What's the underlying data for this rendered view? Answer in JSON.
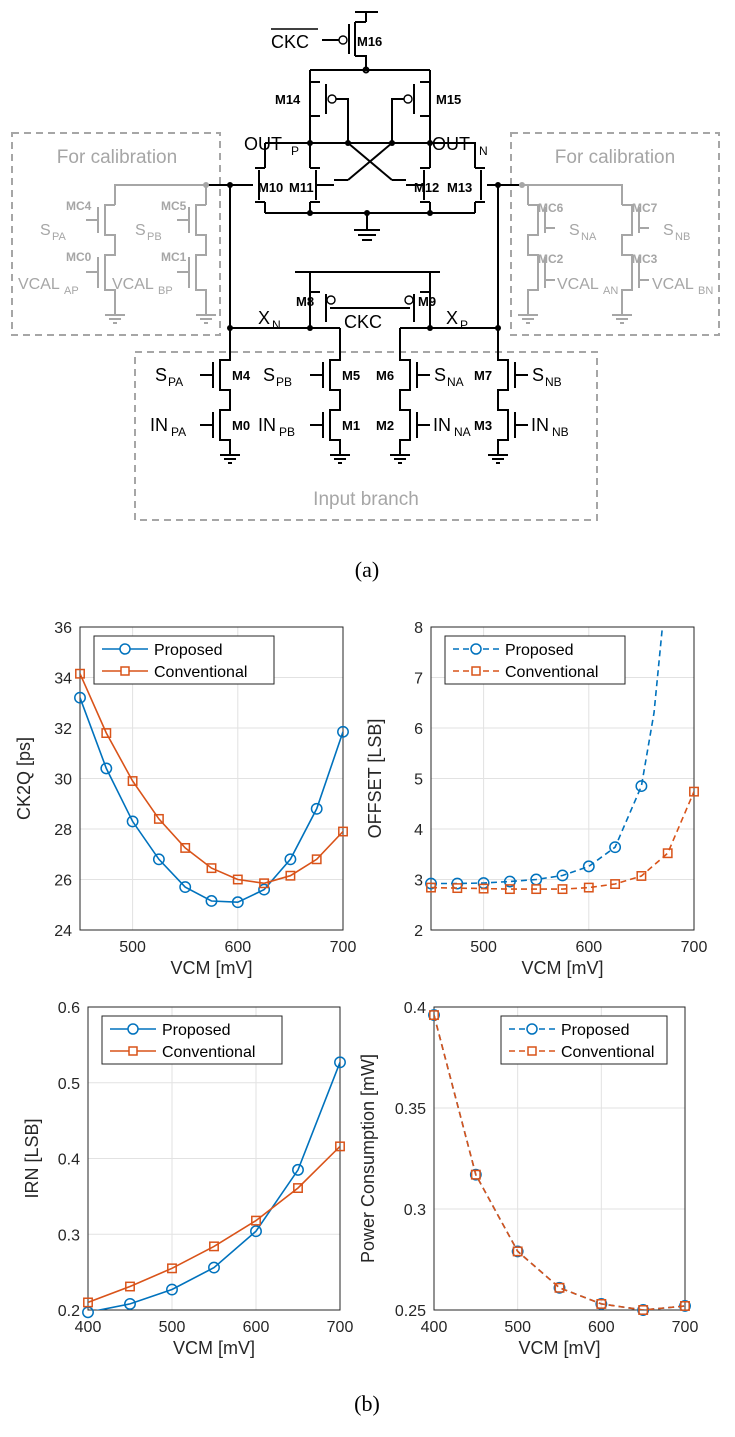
{
  "circuit": {
    "devices": {
      "m16": "M16",
      "m14": "M14",
      "m15": "M15",
      "m10": "M10",
      "m11": "M11",
      "m12": "M12",
      "m13": "M13",
      "m8": "M8",
      "m9": "M9",
      "m4": "M4",
      "m5": "M5",
      "m6": "M6",
      "m7": "M7",
      "m0": "M0",
      "m1": "M1",
      "m2": "M2",
      "m3": "M3",
      "mc4": "MC4",
      "mc5": "MC5",
      "mc0": "MC0",
      "mc1": "MC1",
      "mc6": "MC6",
      "mc7": "MC7",
      "mc2": "MC2",
      "mc3": "MC3"
    },
    "nets": {
      "ckc_bar": "CKC",
      "ckc": "CKC",
      "out_p": "OUT",
      "out_p_sub": "P",
      "out_n": "OUT",
      "out_n_sub": "N",
      "x_n": "X",
      "x_n_sub": "N",
      "x_p": "X",
      "x_p_sub": "P"
    },
    "inputs": {
      "s_pa": "S",
      "s_pa_sub": "PA",
      "s_pb": "S",
      "s_pb_sub": "PB",
      "s_na": "S",
      "s_na_sub": "NA",
      "s_nb": "S",
      "s_nb_sub": "NB",
      "in_pa": "IN",
      "in_pa_sub": "PA",
      "in_pb": "IN",
      "in_pb_sub": "PB",
      "in_na": "IN",
      "in_na_sub": "NA",
      "in_nb": "IN",
      "in_nb_sub": "NB"
    },
    "calibration": {
      "title_left": "For calibration",
      "title_right": "For calibration",
      "s_pa": "S",
      "s_pa_sub": "PA",
      "s_pb": "S",
      "s_pb_sub": "PB",
      "s_na": "S",
      "s_na_sub": "NA",
      "s_nb": "S",
      "s_nb_sub": "NB",
      "vcal_ap": "VCAL",
      "vcal_ap_sub": "AP",
      "vcal_bp": "VCAL",
      "vcal_bp_sub": "BP",
      "vcal_an": "VCAL",
      "vcal_an_sub": "AN",
      "vcal_bn": "VCAL",
      "vcal_bn_sub": "BN"
    },
    "input_branch_label": "Input branch"
  },
  "captions": {
    "a": "(a)",
    "b": "(b)"
  },
  "colors": {
    "proposed": "#0072BD",
    "conventional": "#D95319",
    "calibration": "#a6a6a6"
  },
  "chart_data": [
    {
      "type": "line",
      "xlabel": "VCM [mV]",
      "ylabel": "CK2Q [ps]",
      "xlim": [
        450,
        700
      ],
      "ylim": [
        24,
        36
      ],
      "xticks": [
        500,
        600,
        700
      ],
      "yticks": [
        24,
        26,
        28,
        30,
        32,
        34,
        36
      ],
      "grid": true,
      "legend_position": "top-left",
      "line_style": "solid",
      "series": [
        {
          "name": "Proposed",
          "marker": "circle",
          "x": [
            450,
            475,
            500,
            525,
            550,
            575,
            600,
            625,
            650,
            675,
            700
          ],
          "y": [
            33.2,
            30.4,
            28.3,
            26.8,
            25.7,
            25.15,
            25.1,
            25.6,
            26.8,
            28.8,
            31.85
          ]
        },
        {
          "name": "Conventional",
          "marker": "square",
          "x": [
            450,
            475,
            500,
            525,
            550,
            575,
            600,
            625,
            650,
            675,
            700
          ],
          "y": [
            34.15,
            31.8,
            29.9,
            28.4,
            27.25,
            26.45,
            26.0,
            25.85,
            26.15,
            26.8,
            27.9
          ]
        }
      ]
    },
    {
      "type": "line",
      "xlabel": "VCM [mV]",
      "ylabel": "OFFSET [LSB]",
      "xlim": [
        450,
        700
      ],
      "ylim": [
        2,
        8
      ],
      "xticks": [
        500,
        600,
        700
      ],
      "yticks": [
        2,
        3,
        4,
        5,
        6,
        7,
        8
      ],
      "grid": true,
      "legend_position": "top-left",
      "line_style": "dashed",
      "series": [
        {
          "name": "Proposed",
          "marker": "circle",
          "x": [
            450,
            475,
            500,
            525,
            550,
            575,
            600,
            625,
            650,
            662,
            670
          ],
          "y": [
            2.92,
            2.92,
            2.93,
            2.96,
            3.0,
            3.08,
            3.26,
            3.64,
            4.85,
            6.3,
            8.0
          ],
          "marker_count": 9
        },
        {
          "name": "Conventional",
          "marker": "square",
          "x": [
            450,
            475,
            500,
            525,
            550,
            575,
            600,
            625,
            650,
            675,
            700
          ],
          "y": [
            2.84,
            2.83,
            2.82,
            2.81,
            2.81,
            2.81,
            2.84,
            2.91,
            3.07,
            3.52,
            4.74
          ]
        }
      ]
    },
    {
      "type": "line",
      "xlabel": "VCM [mV]",
      "ylabel": "IRN [LSB]",
      "xlim": [
        400,
        700
      ],
      "ylim": [
        0.2,
        0.6
      ],
      "xticks": [
        400,
        500,
        600,
        700
      ],
      "yticks": [
        0.2,
        0.3,
        0.4,
        0.5,
        0.6
      ],
      "grid": true,
      "legend_position": "top-left",
      "line_style": "solid",
      "series": [
        {
          "name": "Proposed",
          "marker": "circle",
          "x": [
            400,
            450,
            500,
            550,
            600,
            650,
            700
          ],
          "y": [
            0.197,
            0.208,
            0.227,
            0.256,
            0.304,
            0.385,
            0.527
          ]
        },
        {
          "name": "Conventional",
          "marker": "square",
          "x": [
            400,
            450,
            500,
            550,
            600,
            650,
            700
          ],
          "y": [
            0.21,
            0.231,
            0.255,
            0.284,
            0.318,
            0.361,
            0.416
          ]
        }
      ]
    },
    {
      "type": "line",
      "xlabel": "VCM [mV]",
      "ylabel": "Power Consumption [mW]",
      "xlim": [
        400,
        700
      ],
      "ylim": [
        0.25,
        0.4
      ],
      "xticks": [
        400,
        500,
        600,
        700
      ],
      "yticks": [
        0.25,
        0.3,
        0.35,
        0.4
      ],
      "grid": true,
      "legend_position": "top-right",
      "line_style": "dashed",
      "series": [
        {
          "name": "Proposed",
          "marker": "circle",
          "x": [
            400,
            450,
            500,
            550,
            600,
            650,
            700
          ],
          "y": [
            0.396,
            0.317,
            0.279,
            0.261,
            0.253,
            0.25,
            0.252
          ]
        },
        {
          "name": "Conventional",
          "marker": "square",
          "x": [
            400,
            450,
            500,
            550,
            600,
            650,
            700
          ],
          "y": [
            0.396,
            0.317,
            0.279,
            0.261,
            0.253,
            0.25,
            0.252
          ]
        }
      ]
    }
  ]
}
